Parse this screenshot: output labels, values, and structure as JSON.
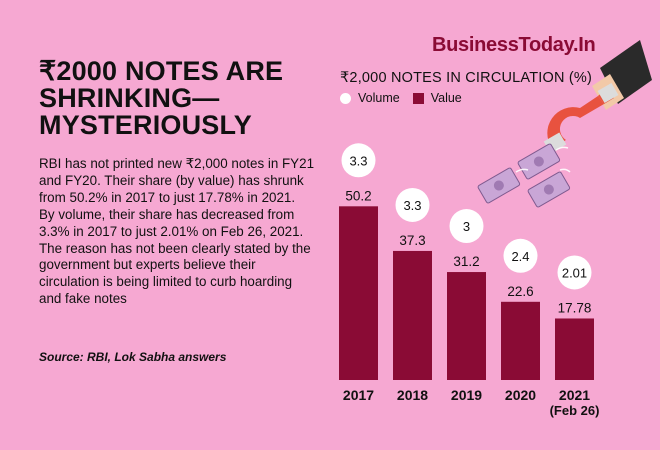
{
  "brand": "BusinessToday.In",
  "headline_lines": [
    "₹2000 NOTES ARE",
    "SHRINKING—",
    "MYSTERIOUSLY"
  ],
  "body": "RBI has not printed new ₹2,000 notes in FY21 and FY20. Their share (by value) has shrunk from 50.2% in 2017 to just 17.78% in 2021. By volume, their share has decreased from 3.3% in 2017 to just 2.01% on Feb 26, 2021. The reason has not been clearly stated by the government but experts believe their circulation is being limited to curb hoarding and fake notes",
  "source": "Source: RBI, Lok Sabha answers",
  "colors": {
    "background": "#f6a8d2",
    "bar": "#8a0b35",
    "volume_bubble": "#ffffff",
    "brand": "#8a0b35"
  },
  "decoration": {
    "icon": "magnet-attracting-banknotes-icon"
  },
  "chart_data": {
    "type": "bar",
    "title": "₹2,000 NOTES IN CIRCULATION (%)",
    "categories": [
      "2017",
      "2018",
      "2019",
      "2020",
      "2021"
    ],
    "category_sublabels": [
      "",
      "",
      "",
      "",
      "(Feb 26)"
    ],
    "series": [
      {
        "name": "Volume",
        "values": [
          3.3,
          3.3,
          3,
          2.4,
          2.01
        ],
        "labels": [
          "3.3",
          "3.3",
          "3",
          "2.4",
          "2.01"
        ],
        "display": "bubble"
      },
      {
        "name": "Value",
        "values": [
          50.2,
          37.3,
          31.2,
          22.6,
          17.78
        ],
        "labels": [
          "50.2",
          "37.3",
          "31.2",
          "22.6",
          "17.78"
        ],
        "display": "bar"
      }
    ],
    "legend_position": "top-left",
    "grid": false
  }
}
